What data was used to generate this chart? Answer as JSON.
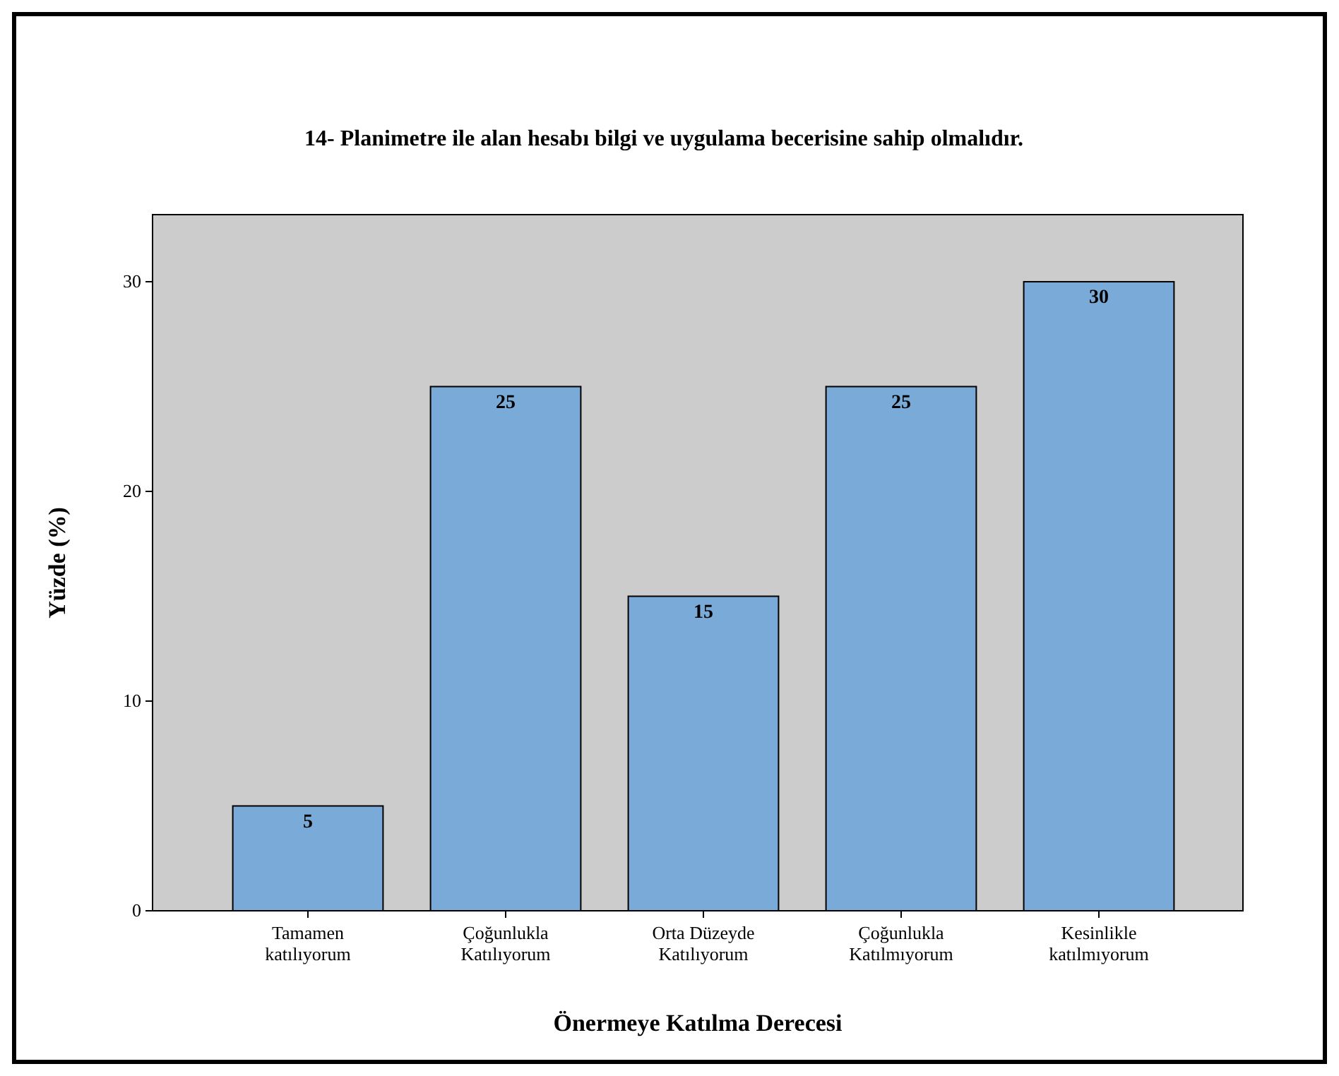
{
  "chart_data": {
    "type": "bar",
    "title": "14- Planimetre ile alan hesabı bilgi ve uygulama becerisine sahip olmalıdır.",
    "xlabel": "Önermeye Katılma Derecesi",
    "ylabel": "Yüzde (%)",
    "categories": [
      "Tamamen katılıyorum",
      "Çoğunlukla Katılıyorum",
      "Orta Düzeyde Katılıyorum",
      "Çoğunlukla Katılmıyorum",
      "Kesinlikle katılmıyorum"
    ],
    "values": [
      5,
      25,
      15,
      25,
      30
    ],
    "color": "#7aaad8",
    "ylim": [
      0,
      33.2
    ],
    "yticks": [
      0,
      10,
      20,
      30
    ],
    "grid": false,
    "data_labels": true
  }
}
